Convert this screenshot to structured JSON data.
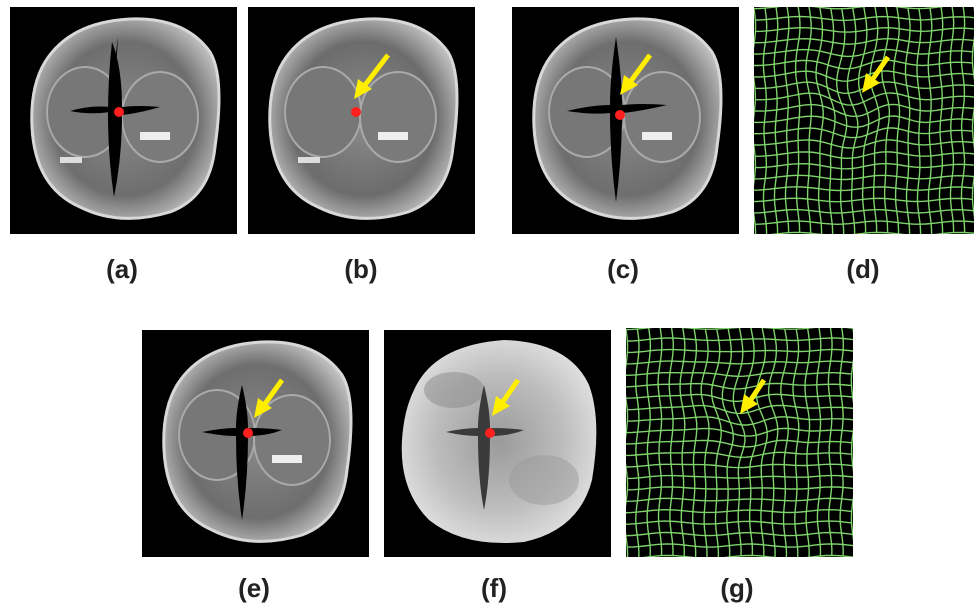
{
  "figure": {
    "labels": [
      "(a)",
      "(b)",
      "(c)",
      "(d)",
      "(e)",
      "(f)",
      "(g)"
    ]
  },
  "colors": {
    "background": "#ffffff",
    "panel_background": "#000000",
    "arrow": "#ffee00",
    "landmark": "#ff2020",
    "grid": "#7ed36a"
  },
  "panels": [
    {
      "id": "a",
      "kind": "mri-slice",
      "cross_cut": true,
      "landmark": true,
      "arrow": false
    },
    {
      "id": "b",
      "kind": "mri-slice",
      "cross_cut": false,
      "landmark": true,
      "arrow": true
    },
    {
      "id": "c",
      "kind": "mri-slice",
      "cross_cut": true,
      "landmark": true,
      "arrow": true
    },
    {
      "id": "d",
      "kind": "deformation-grid",
      "arrow": true
    },
    {
      "id": "e",
      "kind": "mri-slice",
      "cross_cut": true,
      "landmark": true,
      "arrow": true
    },
    {
      "id": "f",
      "kind": "difference-image",
      "cross_cut": true,
      "landmark": true,
      "arrow": true
    },
    {
      "id": "g",
      "kind": "deformation-grid",
      "arrow": true
    }
  ]
}
